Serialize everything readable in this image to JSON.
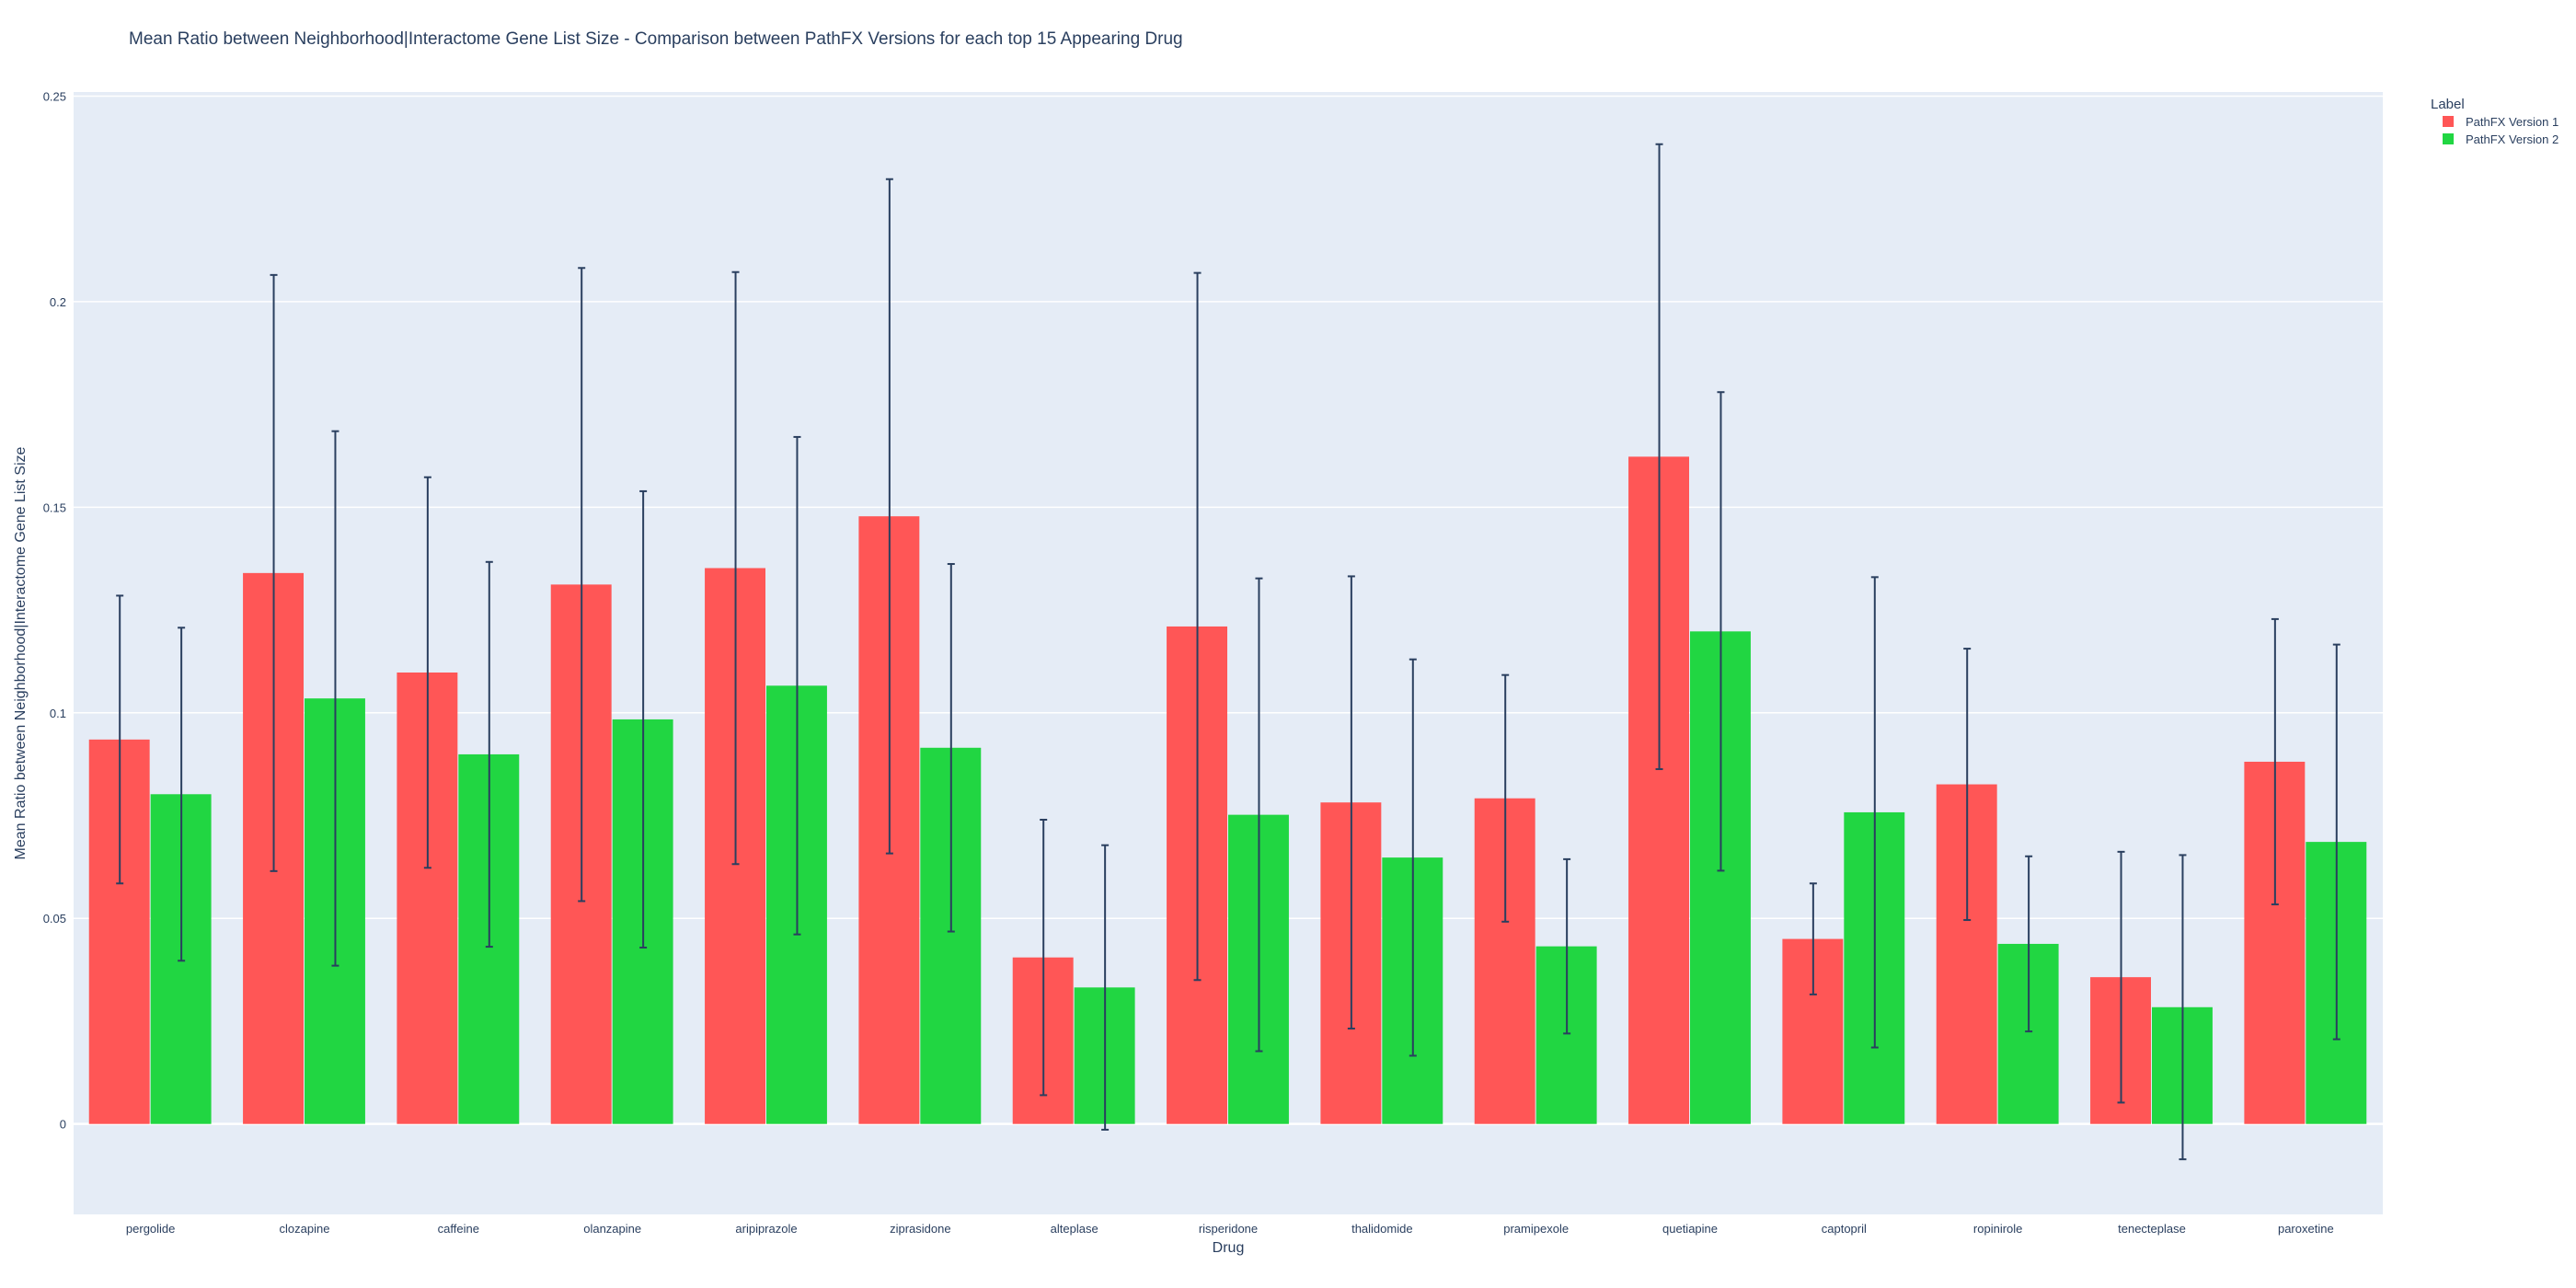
{
  "chart_data": {
    "type": "bar",
    "title": "Mean Ratio between Neighborhood|Interactome Gene List Size - Comparison between PathFX Versions for each top 15 Appearing Drug",
    "xlabel": "Drug",
    "ylabel": "Mean Ratio between Neighborhood|Interactome Gene List Size",
    "ylim": [
      -0.022,
      0.251
    ],
    "yticks": [
      0,
      0.05,
      0.1,
      0.15,
      0.2,
      0.25
    ],
    "ytick_labels": [
      "0",
      "0.05",
      "0.1",
      "0.15",
      "0.2",
      "0.25"
    ],
    "grid": true,
    "legend_title": "Label",
    "legend_position": "top-right",
    "categories": [
      "pergolide",
      "clozapine",
      "caffeine",
      "olanzapine",
      "aripiprazole",
      "ziprasidone",
      "alteplase",
      "risperidone",
      "thalidomide",
      "pramipexole",
      "quetiapine",
      "captopril",
      "ropinirole",
      "tenecteplase",
      "paroxetine"
    ],
    "series": [
      {
        "name": "PathFX Version 1",
        "color": "#ff5656",
        "values": [
          0.0935,
          0.134,
          0.1098,
          0.1312,
          0.1352,
          0.1478,
          0.0405,
          0.121,
          0.0782,
          0.0792,
          0.1623,
          0.045,
          0.0826,
          0.0357,
          0.0881
        ],
        "error": [
          0.035,
          0.0725,
          0.0475,
          0.077,
          0.072,
          0.082,
          0.0335,
          0.086,
          0.055,
          0.03,
          0.076,
          0.0135,
          0.033,
          0.0305,
          0.0347
        ]
      },
      {
        "name": "PathFX Version 2",
        "color": "#21d642",
        "values": [
          0.0802,
          0.1035,
          0.0899,
          0.0984,
          0.1066,
          0.0915,
          0.0332,
          0.0752,
          0.0648,
          0.0432,
          0.1198,
          0.0758,
          0.0438,
          0.0284,
          0.0686
        ],
        "error": [
          0.0405,
          0.065,
          0.0468,
          0.0555,
          0.0605,
          0.0447,
          0.0346,
          0.0575,
          0.0482,
          0.0212,
          0.0582,
          0.0572,
          0.0213,
          0.037,
          0.048
        ]
      }
    ],
    "error_bar_color": "#2a3f5f"
  }
}
